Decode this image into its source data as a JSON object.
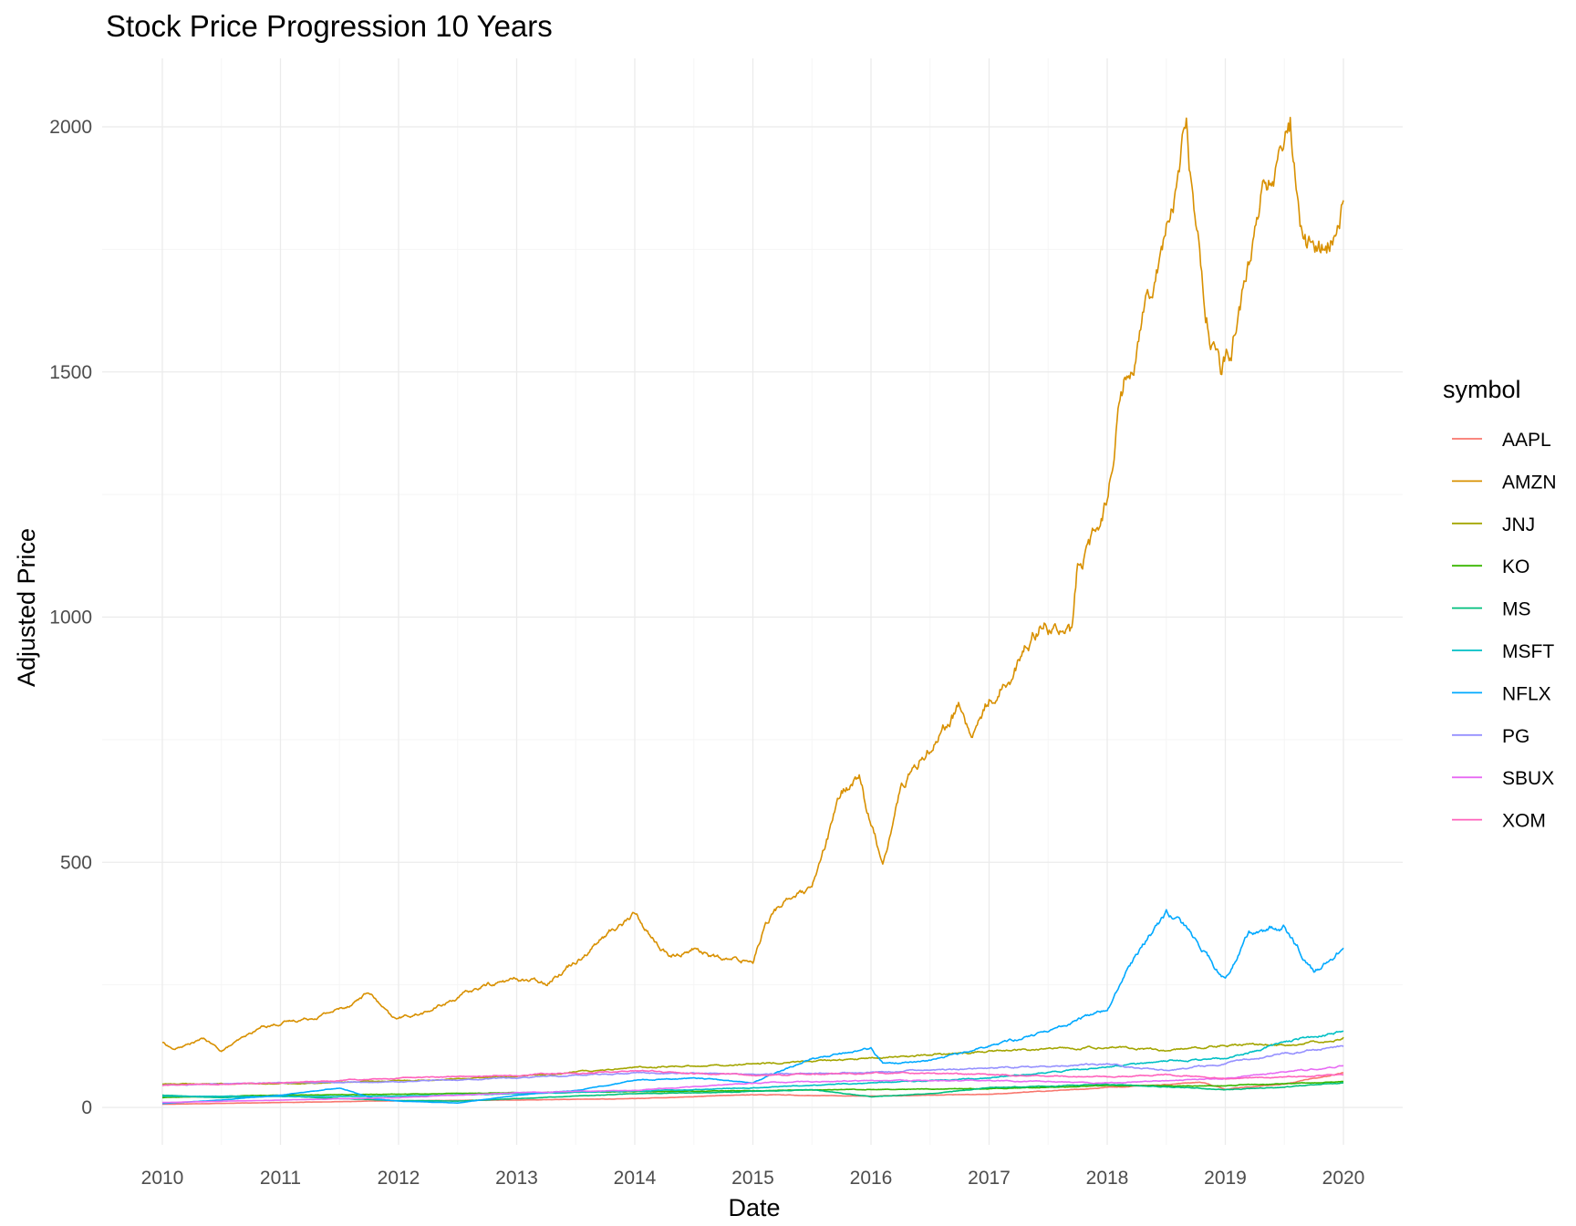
{
  "chart_data": {
    "type": "line",
    "title": "Stock Price Progression 10 Years",
    "xlabel": "Date",
    "ylabel": "Adjusted Price",
    "xlim": [
      2010,
      2020
    ],
    "ylim": [
      0,
      2000
    ],
    "x_ticks": [
      "2010",
      "2011",
      "2012",
      "2013",
      "2014",
      "2015",
      "2016",
      "2017",
      "2018",
      "2019",
      "2020"
    ],
    "y_ticks": [
      "0",
      "500",
      "1000",
      "1500",
      "2000"
    ],
    "grid": true,
    "legend": {
      "title": "symbol",
      "placement": "right"
    },
    "x_unit": "year",
    "series": [
      {
        "name": "AAPL",
        "color": "#F8766D",
        "x": [
          2010,
          2011,
          2012,
          2013,
          2014,
          2015,
          2016,
          2017,
          2018,
          2018.8,
          2019,
          2019.5,
          2020
        ],
        "y": [
          6.5,
          10,
          13.5,
          15,
          18,
          26,
          23,
          27,
          40,
          51,
          37,
          48,
          71
        ]
      },
      {
        "name": "AMZN",
        "color": "#D89000",
        "x": [
          2010,
          2010.1,
          2010.35,
          2010.5,
          2010.85,
          2011.3,
          2011.55,
          2011.75,
          2011.95,
          2012.25,
          2012.5,
          2012.75,
          2013.0,
          2013.25,
          2013.5,
          2013.75,
          2014.0,
          2014.2,
          2014.3,
          2014.5,
          2014.75,
          2015.0,
          2015.1,
          2015.3,
          2015.5,
          2015.6,
          2015.75,
          2015.9,
          2016.0,
          2016.1,
          2016.25,
          2016.5,
          2016.75,
          2016.85,
          2017.0,
          2017.25,
          2017.45,
          2017.55,
          2017.7,
          2017.75,
          2017.95,
          2018.0,
          2018.1,
          2018.25,
          2018.4,
          2018.55,
          2018.67,
          2018.75,
          2018.85,
          2018.97,
          2019.0,
          2019.15,
          2019.3,
          2019.45,
          2019.55,
          2019.65,
          2019.8,
          2019.9,
          2020.0
        ],
        "y": [
          133,
          118,
          140,
          115,
          165,
          185,
          205,
          235,
          180,
          195,
          225,
          250,
          262,
          255,
          300,
          350,
          395,
          330,
          305,
          325,
          300,
          300,
          375,
          430,
          440,
          520,
          640,
          680,
          575,
          500,
          650,
          740,
          820,
          750,
          830,
          910,
          1000,
          980,
          960,
          1100,
          1190,
          1250,
          1450,
          1560,
          1720,
          1850,
          2000,
          1780,
          1620,
          1480,
          1510,
          1640,
          1850,
          1920,
          2000,
          1780,
          1750,
          1760,
          1850
        ]
      },
      {
        "name": "JNJ",
        "color": "#A3A500",
        "x": [
          2010,
          2011,
          2012,
          2013,
          2014,
          2015,
          2016,
          2017,
          2018,
          2018.5,
          2019,
          2019.5,
          2020
        ],
        "y": [
          48,
          48,
          54,
          63,
          82,
          88,
          100,
          114,
          124,
          116,
          128,
          126,
          143
        ]
      },
      {
        "name": "KO",
        "color": "#39B600",
        "x": [
          2010,
          2011,
          2012,
          2013,
          2014,
          2015,
          2016,
          2017,
          2018,
          2019,
          2020
        ],
        "y": [
          20,
          25,
          27,
          30,
          32,
          34,
          37,
          38,
          44,
          44,
          53
        ]
      },
      {
        "name": "MS",
        "color": "#00BF7D",
        "x": [
          2010,
          2010.5,
          2011,
          2011.5,
          2012,
          2012.5,
          2013,
          2014,
          2015,
          2015.5,
          2016,
          2016.5,
          2017,
          2018,
          2018.5,
          2019,
          2019.5,
          2020
        ],
        "y": [
          25,
          20,
          24,
          18,
          14,
          13,
          18,
          28,
          32,
          36,
          22,
          28,
          40,
          47,
          42,
          36,
          42,
          50
        ]
      },
      {
        "name": "MSFT",
        "color": "#00BFC4",
        "x": [
          2010,
          2011,
          2012,
          2013,
          2014,
          2015,
          2016,
          2017,
          2018,
          2018.5,
          2019,
          2019.5,
          2020
        ],
        "y": [
          23,
          22,
          23,
          28,
          33,
          40,
          50,
          60,
          82,
          95,
          100,
          133,
          156
        ]
      },
      {
        "name": "NFLX",
        "color": "#00A9FF",
        "x": [
          2010,
          2010.5,
          2011,
          2011.5,
          2011.8,
          2012,
          2012.5,
          2013,
          2013.5,
          2014,
          2014.5,
          2015,
          2015.5,
          2016,
          2016.1,
          2016.5,
          2017,
          2017.5,
          2017.85,
          2018,
          2018.2,
          2018.5,
          2018.7,
          2018.9,
          2019,
          2019.2,
          2019.5,
          2019.75,
          2020
        ],
        "y": [
          8,
          15,
          25,
          40,
          17,
          13,
          9,
          25,
          35,
          55,
          60,
          50,
          100,
          120,
          90,
          95,
          125,
          155,
          190,
          200,
          290,
          400,
          360,
          290,
          260,
          360,
          370,
          275,
          325
        ]
      },
      {
        "name": "PG",
        "color": "#9590FF",
        "x": [
          2010,
          2011,
          2012,
          2013,
          2014,
          2015,
          2016,
          2017,
          2018,
          2018.5,
          2019,
          2019.5,
          2020
        ],
        "y": [
          45,
          50,
          52,
          60,
          70,
          68,
          72,
          80,
          88,
          75,
          90,
          110,
          124
        ]
      },
      {
        "name": "SBUX",
        "color": "#E76BF3",
        "x": [
          2010,
          2011,
          2012,
          2013,
          2014,
          2015,
          2016,
          2017,
          2018,
          2019,
          2020
        ],
        "y": [
          10,
          15,
          20,
          30,
          35,
          50,
          55,
          55,
          50,
          60,
          85
        ]
      },
      {
        "name": "XOM",
        "color": "#FF62BC",
        "x": [
          2010,
          2011,
          2012,
          2013,
          2014,
          2015,
          2016,
          2017,
          2018,
          2018.5,
          2019,
          2019.5,
          2020
        ],
        "y": [
          45,
          50,
          60,
          65,
          75,
          65,
          70,
          67,
          62,
          68,
          58,
          62,
          66
        ]
      }
    ]
  }
}
